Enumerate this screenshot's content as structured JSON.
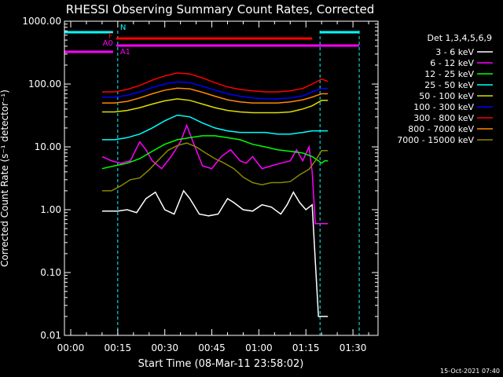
{
  "chart_data": {
    "type": "line",
    "title": "RHESSI Observing Summary Count Rates, Corrected",
    "ylabel": "Corrected Count Rate (s⁻¹ detector⁻¹)",
    "xlabel": "Start Time (08-Mar-11 23:58:02)",
    "yscale": "log",
    "ylim": [
      0.01,
      1000
    ],
    "xlim_minutes": [
      -2,
      98
    ],
    "grid": false,
    "legend_placement": "right",
    "legend_title": "Det 1,3,4,5,6,9",
    "x_ticks": [
      {
        "minutes": 0,
        "label": "00:00"
      },
      {
        "minutes": 15,
        "label": "00:15"
      },
      {
        "minutes": 30,
        "label": "00:30"
      },
      {
        "minutes": 45,
        "label": "00:45"
      },
      {
        "minutes": 60,
        "label": "01:00"
      },
      {
        "minutes": 75,
        "label": "01:15"
      },
      {
        "minutes": 90,
        "label": "01:30"
      }
    ],
    "y_ticks": [
      {
        "value": 1000,
        "label": "1000.00"
      },
      {
        "value": 100,
        "label": "100.00"
      },
      {
        "value": 10,
        "label": "10.00"
      },
      {
        "value": 1,
        "label": "1.00"
      },
      {
        "value": 0.1,
        "label": "0.10"
      },
      {
        "value": 0.01,
        "label": "0.01"
      }
    ],
    "flags": [
      {
        "label": "N",
        "color": "#00ffff",
        "segments": [
          [
            -2,
            13.5
          ],
          [
            79.5,
            92
          ]
        ]
      },
      {
        "label": "F",
        "color": "#ff0000",
        "segments": [
          [
            14.5,
            77
          ]
        ]
      },
      {
        "label": "A0",
        "color": "#ff00ff",
        "segments": [
          [
            14.5,
            92
          ]
        ]
      },
      {
        "label": "A1",
        "color": "#ff00ff",
        "segments": [
          [
            -2,
            13.5
          ]
        ]
      }
    ],
    "night_boundaries_minutes": [
      -2,
      15,
      79.5,
      92
    ],
    "series": [
      {
        "name": "3 - 6 keV",
        "color": "#ffffff",
        "x": [
          10,
          15,
          18,
          21,
          24,
          27,
          30,
          33,
          36,
          38,
          41,
          44,
          47,
          50,
          52,
          55,
          58,
          61,
          64,
          67,
          69,
          71,
          73,
          75,
          77,
          78,
          79,
          80,
          81,
          82
        ],
        "values": [
          0.95,
          0.95,
          1.0,
          0.9,
          1.5,
          1.9,
          1.0,
          0.85,
          2.0,
          1.5,
          0.85,
          0.8,
          0.85,
          1.5,
          1.3,
          1.0,
          0.95,
          1.2,
          1.1,
          0.85,
          1.2,
          1.9,
          1.3,
          1.0,
          1.2,
          0.15,
          0.02,
          0.02,
          0.02,
          0.02
        ]
      },
      {
        "name": "6 - 12 keV",
        "color": "#ff00ff",
        "x": [
          10,
          13,
          16,
          19,
          22,
          24,
          26,
          29,
          32,
          35,
          37,
          39,
          42,
          45,
          48,
          51,
          54,
          56,
          58,
          61,
          64,
          67,
          70,
          72,
          74,
          76,
          77,
          78,
          79,
          80,
          81,
          82
        ],
        "values": [
          7,
          6,
          5.5,
          6,
          12,
          9,
          6,
          4.5,
          7,
          12,
          22,
          12,
          5,
          4.5,
          7,
          9,
          6,
          5.5,
          7,
          4.5,
          5,
          5.5,
          6,
          9,
          6,
          10,
          4,
          0.6,
          0.6,
          0.6,
          0.6,
          0.6
        ]
      },
      {
        "name": "12 - 25 keV",
        "color": "#00ff00",
        "x": [
          10,
          14,
          18,
          22,
          26,
          30,
          34,
          38,
          42,
          46,
          50,
          54,
          58,
          62,
          66,
          70,
          74,
          77,
          79,
          80,
          81,
          82
        ],
        "values": [
          4.5,
          5,
          5.5,
          6.5,
          8.5,
          11,
          13,
          14,
          15,
          15,
          14,
          13,
          11,
          10,
          9,
          8.5,
          8,
          7,
          6,
          5.5,
          6,
          6
        ]
      },
      {
        "name": "25 - 50 keV",
        "color": "#00ffff",
        "x": [
          10,
          14,
          18,
          22,
          26,
          30,
          34,
          38,
          42,
          46,
          50,
          54,
          58,
          62,
          66,
          70,
          74,
          77,
          80,
          82
        ],
        "values": [
          13,
          13,
          14,
          16,
          20,
          26,
          32,
          30,
          24,
          20,
          18,
          17,
          17,
          17,
          16,
          16,
          17,
          18,
          18,
          18
        ]
      },
      {
        "name": "50 - 100 keV",
        "color": "#dddd00",
        "x": [
          10,
          14,
          18,
          22,
          26,
          30,
          34,
          38,
          42,
          46,
          50,
          54,
          58,
          62,
          66,
          70,
          74,
          77,
          80,
          82
        ],
        "values": [
          36,
          36,
          38,
          42,
          48,
          54,
          58,
          55,
          48,
          42,
          38,
          36,
          35,
          35,
          35,
          36,
          40,
          45,
          55,
          55
        ]
      },
      {
        "name": "100 - 300 keV",
        "color": "#0000ff",
        "x": [
          10,
          14,
          18,
          22,
          26,
          30,
          34,
          38,
          42,
          46,
          50,
          54,
          58,
          62,
          66,
          70,
          74,
          77,
          80,
          82
        ],
        "values": [
          62,
          62,
          66,
          75,
          88,
          100,
          108,
          105,
          92,
          80,
          70,
          64,
          60,
          58,
          58,
          60,
          65,
          75,
          85,
          85
        ]
      },
      {
        "name": "300 - 800 keV",
        "color": "#ff0000",
        "x": [
          10,
          14,
          18,
          22,
          26,
          30,
          34,
          38,
          42,
          46,
          50,
          54,
          58,
          62,
          66,
          70,
          74,
          77,
          80,
          82
        ],
        "values": [
          75,
          75,
          82,
          95,
          115,
          135,
          150,
          145,
          125,
          105,
          90,
          82,
          78,
          75,
          75,
          78,
          85,
          100,
          120,
          110
        ]
      },
      {
        "name": "800 - 7000 keV",
        "color": "#ff8800",
        "x": [
          10,
          14,
          18,
          22,
          26,
          30,
          34,
          38,
          42,
          46,
          50,
          54,
          58,
          62,
          66,
          70,
          74,
          77,
          80,
          82
        ],
        "values": [
          50,
          50,
          53,
          60,
          70,
          80,
          86,
          84,
          74,
          64,
          56,
          52,
          50,
          50,
          50,
          52,
          56,
          62,
          70,
          70
        ]
      },
      {
        "name": "7000 - 15000 keV",
        "color": "#888800",
        "x": [
          10,
          13,
          16,
          19,
          22,
          25,
          28,
          31,
          34,
          37,
          40,
          43,
          46,
          49,
          52,
          55,
          58,
          61,
          64,
          67,
          70,
          73,
          76,
          78,
          80,
          82
        ],
        "values": [
          2,
          2,
          2.4,
          3,
          3.2,
          4.3,
          6.2,
          8.8,
          10.5,
          11.5,
          10,
          8,
          6.5,
          5.5,
          4.5,
          3.3,
          2.7,
          2.5,
          2.7,
          2.7,
          2.8,
          3.6,
          4.4,
          6,
          8.7,
          8.7
        ]
      }
    ]
  },
  "footer": {
    "timestamp": "15-Oct-2021 07:40"
  }
}
